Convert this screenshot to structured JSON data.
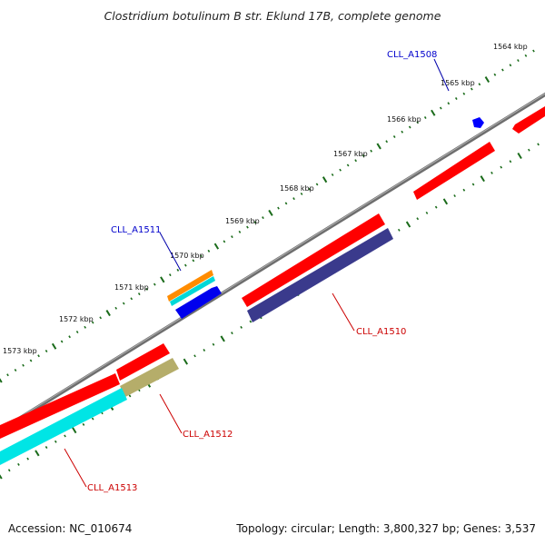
{
  "title": "Clostridium botulinum B str. Eklund 17B, complete genome",
  "footer": {
    "accession": "Accession: NC_010674",
    "summary": "Topology: circular; Length: 3,800,327 bp; Genes: 3,537"
  },
  "ticks": [
    {
      "label": "1564 kbp"
    },
    {
      "label": "1565 kbp"
    },
    {
      "label": "1566 kbp"
    },
    {
      "label": "1567 kbp"
    },
    {
      "label": "1568 kbp"
    },
    {
      "label": "1569 kbp"
    },
    {
      "label": "1570 kbp"
    },
    {
      "label": "1571 kbp"
    },
    {
      "label": "1572 kbp"
    },
    {
      "label": "1573 kbp"
    }
  ],
  "genes": [
    {
      "label": "CLL_A1508",
      "color": "#0000cc"
    },
    {
      "label": "CLL_A1511",
      "color": "#0000cc"
    },
    {
      "label": "CLL_A1510",
      "color": "#cc0000"
    },
    {
      "label": "CLL_A1512",
      "color": "#cc0000"
    },
    {
      "label": "CLL_A1513",
      "color": "#cc0000"
    }
  ],
  "colors": {
    "backbone": "#888888",
    "ticks": "#1a6b1a",
    "red_feature": "#ff0000",
    "cyan_feature": "#00e5e5",
    "blue_feature": "#0000ff",
    "navy_feature": "#3a3a8c",
    "olive_feature": "#b5ad6a",
    "orange_feature": "#ff8c00"
  }
}
